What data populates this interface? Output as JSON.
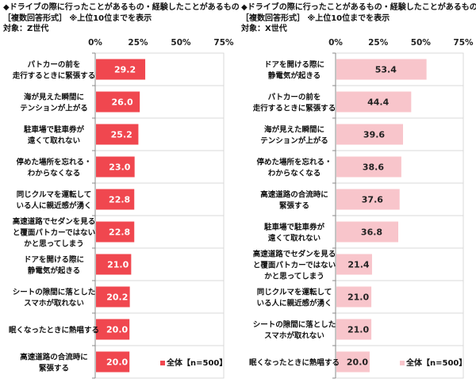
{
  "chart_data": [
    {
      "type": "bar",
      "orientation": "horizontal",
      "title": "◆ドライブの際に行ったことがあるもの・経験したことがあるもの",
      "subtitle": "［複数回答形式］ ※上位10位までを表示",
      "target": "対象：Z世代",
      "xlim": [
        0,
        75
      ],
      "xticks": [
        "0%",
        "25%",
        "50%",
        "75%"
      ],
      "grid": true,
      "legend": "全体【n=500】",
      "legend_position": "bottom-right",
      "color": "#f0474f",
      "label_color": "#ffffff",
      "categories": [
        [
          "パトカーの前を",
          "走行するときに緊張する"
        ],
        [
          "海が見えた瞬間に",
          "テンションが上がる"
        ],
        [
          "駐車場で駐車券が",
          "遠くて取れない"
        ],
        [
          "停めた場所を忘れる・",
          "わからなくなる"
        ],
        [
          "同じクルマを運転して",
          "いる人に親近感が湧く"
        ],
        [
          "高速道路でセダンを見る",
          "と覆面パトカーではない",
          "かと思ってしまう"
        ],
        [
          "ドアを開ける際に",
          "静電気が起きる"
        ],
        [
          "シートの隙間に落とした",
          "スマホが取れない"
        ],
        [
          "眠くなったときに熱唱する"
        ],
        [
          "高速道路の合流時に",
          "緊張する"
        ]
      ],
      "values": [
        29.2,
        26.0,
        25.2,
        23.0,
        22.8,
        22.8,
        21.0,
        20.2,
        20.0,
        20.0
      ]
    },
    {
      "type": "bar",
      "orientation": "horizontal",
      "title": "◆ドライブの際に行ったことがあるもの・経験したことがあるもの",
      "subtitle": "［複数回答形式］ ※上位10位までを表示",
      "target": "対象：X世代",
      "xlim": [
        0,
        75
      ],
      "xticks": [
        "0%",
        "25%",
        "50%",
        "75%"
      ],
      "grid": true,
      "legend": "全体【n=500】",
      "legend_position": "bottom-right",
      "color": "#f8c5cb",
      "label_color": "#222222",
      "categories": [
        [
          "ドアを開ける際に",
          "静電気が起きる"
        ],
        [
          "パトカーの前を",
          "走行するときに緊張する"
        ],
        [
          "海が見えた瞬間に",
          "テンションが上がる"
        ],
        [
          "停めた場所を忘れる・",
          "わからなくなる"
        ],
        [
          "高速道路の合流時に",
          "緊張する"
        ],
        [
          "駐車場で駐車券が",
          "遠くて取れない"
        ],
        [
          "高速道路でセダンを見る",
          "と覆面パトカーではない",
          "かと思ってしまう"
        ],
        [
          "同じクルマを運転して",
          "いる人に親近感が湧く"
        ],
        [
          "シートの隙間に落とした",
          "スマホが取れない"
        ],
        [
          "眠くなったときに熱唱する"
        ]
      ],
      "values": [
        53.4,
        44.4,
        39.6,
        38.6,
        37.6,
        36.8,
        21.4,
        21.0,
        21.0,
        20.0
      ]
    }
  ]
}
